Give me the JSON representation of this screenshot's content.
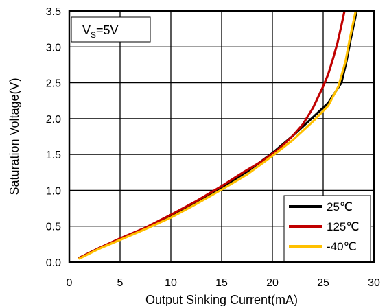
{
  "chart_data": {
    "type": "line",
    "xlabel": "Output Sinking Current(mA)",
    "ylabel": "Saturation Voltage(V)",
    "xlim": [
      0,
      30
    ],
    "ylim": [
      0,
      3.5
    ],
    "xticks": [
      0,
      5,
      10,
      15,
      20,
      25,
      30
    ],
    "yticks": [
      0.0,
      0.5,
      1.0,
      1.5,
      2.0,
      2.5,
      3.0,
      3.5
    ],
    "xtick_labels": [
      "0",
      "5",
      "10",
      "15",
      "20",
      "25",
      "30"
    ],
    "ytick_labels": [
      "0.0",
      "0.5",
      "1.0",
      "1.5",
      "2.0",
      "2.5",
      "3.0",
      "3.5"
    ],
    "grid": true,
    "legend_position": "bottom-right",
    "annotation": {
      "main": "V",
      "sub": "S",
      "rest": "=5V"
    },
    "series": [
      {
        "name": "25℃",
        "color": "#000000",
        "x": [
          1,
          3,
          5,
          7.5,
          10,
          12.5,
          15,
          17.5,
          20,
          22,
          24,
          25.5,
          26.8,
          27.3,
          27.7,
          28.0,
          28.3
        ],
        "y": [
          0.06,
          0.2,
          0.32,
          0.47,
          0.64,
          0.83,
          1.04,
          1.26,
          1.52,
          1.76,
          2.02,
          2.22,
          2.5,
          2.8,
          3.1,
          3.3,
          3.5
        ]
      },
      {
        "name": "125℃",
        "color": "#c00000",
        "x": [
          1,
          3,
          5,
          7.5,
          10,
          12.5,
          15,
          17,
          19,
          20.5,
          22,
          23,
          24,
          24.5,
          25,
          25.5,
          26,
          26.4,
          26.8,
          27.1
        ],
        "y": [
          0.06,
          0.2,
          0.33,
          0.48,
          0.66,
          0.85,
          1.06,
          1.24,
          1.41,
          1.56,
          1.76,
          1.92,
          2.15,
          2.3,
          2.45,
          2.62,
          2.85,
          3.05,
          3.3,
          3.5
        ]
      },
      {
        "name": "-40℃",
        "color": "#ffc000",
        "x": [
          1,
          3,
          5,
          7.5,
          10,
          12.5,
          15,
          17.5,
          20,
          22,
          24,
          25.5,
          26.5,
          27.2,
          27.6,
          27.9,
          28.2
        ],
        "y": [
          0.05,
          0.19,
          0.31,
          0.46,
          0.62,
          0.81,
          1.01,
          1.22,
          1.48,
          1.7,
          1.96,
          2.18,
          2.45,
          2.8,
          3.1,
          3.3,
          3.5
        ]
      }
    ]
  }
}
